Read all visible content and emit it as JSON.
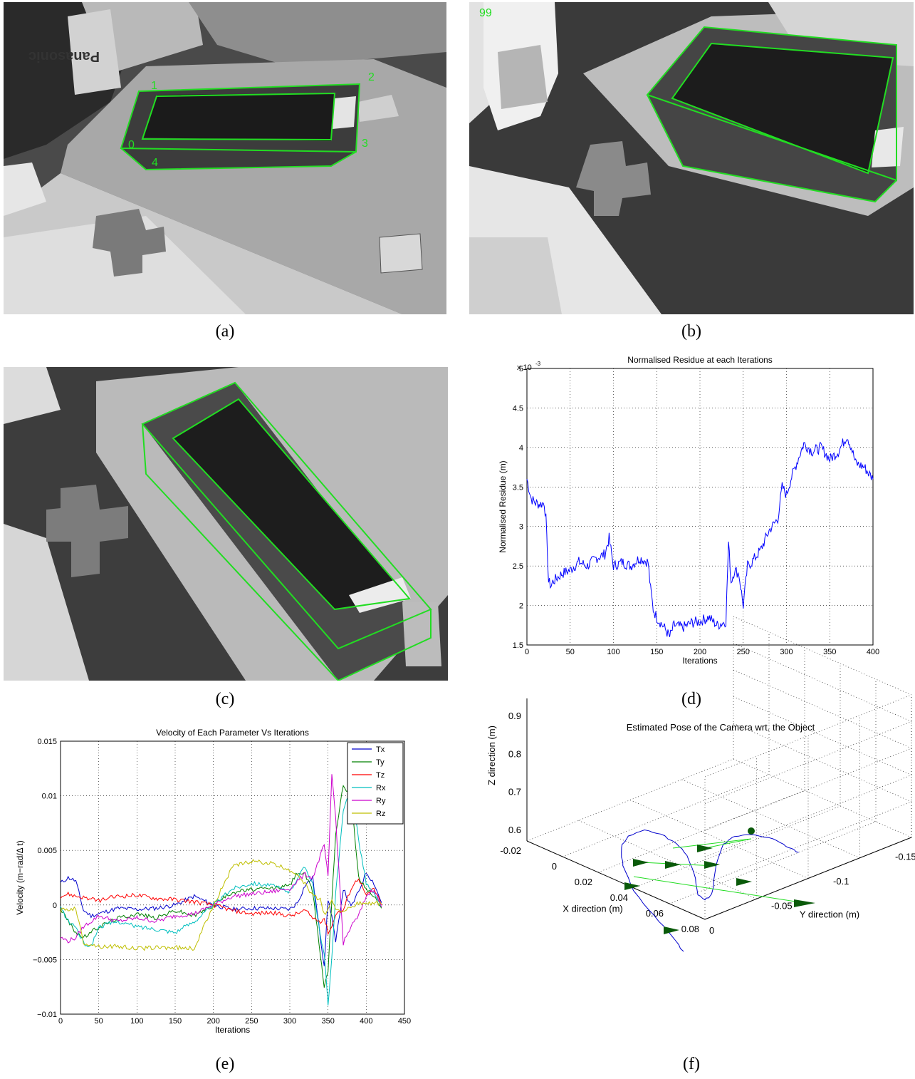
{
  "captions": {
    "a": "(a)",
    "b": "(b)",
    "c": "(c)",
    "d": "(d)",
    "e": "(e)",
    "f": "(f)"
  },
  "photos": {
    "a": {
      "corner_labels": [
        "1",
        "2",
        "3",
        "0",
        "4"
      ],
      "box_text": "Panasonic"
    },
    "b": {
      "frame_number": "99"
    },
    "c": {}
  },
  "colors": {
    "overlay": "#22dd22",
    "pose_marker": "#0a5a0a",
    "photo_gray": "#6f6f6f"
  },
  "chart_data": [
    {
      "id": "d",
      "type": "line",
      "title": "Normalised Residue at each Iterations",
      "xlabel": "Iterations",
      "ylabel": "Normalised Residue (m)",
      "y_multiplier": "x 10",
      "y_exponent": "-3",
      "xlim": [
        0,
        400
      ],
      "ylim": [
        1.5,
        5
      ],
      "xticks": [
        0,
        50,
        100,
        150,
        200,
        250,
        300,
        350,
        400
      ],
      "yticks": [
        1.5,
        2,
        2.5,
        3,
        3.5,
        4,
        4.5,
        5
      ],
      "grid": true,
      "series": [
        {
          "color": "#0000ff",
          "x": [
            0,
            5,
            10,
            15,
            20,
            22,
            25,
            28,
            30,
            35,
            40,
            50,
            60,
            70,
            80,
            90,
            95,
            100,
            110,
            120,
            130,
            140,
            143,
            146,
            150,
            160,
            165,
            170,
            180,
            190,
            200,
            210,
            220,
            230,
            233,
            236,
            240,
            245,
            250,
            255,
            260,
            270,
            280,
            290,
            295,
            300,
            305,
            310,
            315,
            320,
            330,
            340,
            350,
            360,
            370,
            375,
            380,
            390,
            400
          ],
          "y": [
            3.6,
            3.35,
            3.3,
            3.28,
            3.3,
            3.1,
            2.3,
            2.25,
            2.3,
            2.35,
            2.4,
            2.45,
            2.55,
            2.5,
            2.6,
            2.65,
            2.85,
            2.5,
            2.55,
            2.5,
            2.6,
            2.55,
            2.2,
            1.95,
            1.85,
            1.7,
            1.6,
            1.75,
            1.72,
            1.78,
            1.8,
            1.85,
            1.75,
            1.8,
            2.8,
            2.3,
            2.45,
            2.4,
            2.0,
            2.5,
            2.55,
            2.7,
            2.95,
            3.1,
            3.5,
            3.4,
            3.6,
            3.75,
            3.9,
            4.05,
            3.95,
            4.0,
            3.85,
            3.95,
            4.15,
            4.0,
            3.8,
            3.75,
            3.6
          ]
        }
      ]
    },
    {
      "id": "e",
      "type": "line",
      "title": "Velocity of Each Parameter Vs Iterations",
      "xlabel": "Iterations",
      "ylabel": "Velocity (m−rad/Δ t)",
      "xlim": [
        0,
        450
      ],
      "ylim": [
        -0.01,
        0.015
      ],
      "xticks": [
        0,
        50,
        100,
        150,
        200,
        250,
        300,
        350,
        400,
        450
      ],
      "yticks": [
        -0.01,
        -0.005,
        0,
        0.005,
        0.01,
        0.015
      ],
      "yticklabels": [
        "−0.01",
        "−0.005",
        "0",
        "0.005",
        "0.01",
        "0.015"
      ],
      "grid": true,
      "legend": "top-right",
      "x": [
        0,
        10,
        20,
        30,
        40,
        50,
        75,
        100,
        125,
        150,
        175,
        200,
        225,
        250,
        275,
        300,
        310,
        320,
        330,
        340,
        345,
        350,
        355,
        360,
        370,
        380,
        390,
        400,
        410,
        420
      ],
      "series": [
        {
          "name": "Tx",
          "color": "#0000cc",
          "values": [
            0.002,
            0.0025,
            0.0022,
            -0.0005,
            -0.001,
            -0.0008,
            -0.0003,
            -0.0004,
            -0.0003,
            0.0,
            0.0008,
            0.0,
            -0.0004,
            -0.0003,
            -0.0003,
            -0.0004,
            0.0002,
            0.0018,
            0.0025,
            -0.003,
            -0.0055,
            0.0005,
            -0.001,
            -0.0035,
            0.0015,
            -0.0002,
            0.0012,
            0.003,
            0.002,
            0.0002
          ]
        },
        {
          "name": "Ty",
          "color": "#008000",
          "values": [
            -0.0003,
            -0.0015,
            -0.0025,
            -0.003,
            -0.0025,
            -0.002,
            -0.0012,
            -0.0008,
            -0.0012,
            -0.0005,
            -0.001,
            0.0,
            0.0012,
            0.0014,
            0.0015,
            0.0018,
            0.003,
            0.0028,
            0.0012,
            -0.0045,
            -0.0075,
            -0.006,
            0.0005,
            0.0065,
            0.011,
            0.01,
            0.0025,
            0.0015,
            0.0008,
            -0.0003
          ]
        },
        {
          "name": "Tz",
          "color": "#ff0000",
          "values": [
            0.0008,
            0.001,
            0.0008,
            0.0007,
            0.0005,
            0.0004,
            0.0008,
            0.0009,
            0.0006,
            0.0005,
            0.0003,
            0.0,
            -0.0005,
            -0.0008,
            -0.0007,
            -0.001,
            -0.0008,
            -0.0005,
            -0.0012,
            -0.0015,
            -0.0012,
            -0.0025,
            -0.002,
            -0.0008,
            -0.0005,
            0.0015,
            0.0025,
            0.0008,
            0.0015,
            0.0
          ]
        },
        {
          "name": "Rx",
          "color": "#00bfbf",
          "values": [
            -0.0002,
            -0.0015,
            -0.002,
            -0.0035,
            -0.0038,
            -0.002,
            -0.0015,
            -0.002,
            -0.0022,
            -0.0025,
            -0.0015,
            0.0,
            0.0015,
            0.002,
            0.0018,
            0.0012,
            0.0025,
            0.0035,
            0.002,
            -0.003,
            -0.0045,
            -0.009,
            -0.005,
            0.001,
            0.0085,
            0.011,
            0.006,
            0.002,
            0.001,
            -0.0002
          ]
        },
        {
          "name": "Ry",
          "color": "#cc00cc",
          "values": [
            -0.003,
            -0.0033,
            -0.003,
            -0.002,
            -0.0015,
            -0.001,
            -0.0015,
            -0.0012,
            -0.0015,
            -0.001,
            -0.0008,
            0.0,
            0.0008,
            0.001,
            0.0012,
            0.0015,
            0.0022,
            0.0028,
            0.0025,
            0.0045,
            0.0055,
            0.0025,
            0.012,
            0.008,
            -0.0035,
            -0.002,
            -0.001,
            0.0008,
            0.0015,
            -0.0002
          ]
        },
        {
          "name": "Rz",
          "color": "#bfbf00",
          "values": [
            -0.0005,
            -0.0004,
            -0.0003,
            -0.0035,
            -0.0036,
            -0.0038,
            -0.0038,
            -0.004,
            -0.0039,
            -0.0039,
            -0.004,
            0.0,
            0.0035,
            0.004,
            0.0038,
            0.0032,
            0.0028,
            0.002,
            0.0008,
            0.0005,
            -0.0008,
            -0.0005,
            0.0003,
            -0.0003,
            -0.0005,
            -0.0003,
            0.0002,
            0.0001,
            0.0002,
            0.0001
          ]
        }
      ]
    },
    {
      "id": "f",
      "type": "scatter",
      "subtype": "3d-line",
      "title": "Estimated Pose of the Camera wrt. the Object",
      "xlabel": "X direction (m)",
      "ylabel": "Y direction (m)",
      "zlabel": "Z direction (m)",
      "xticks": [
        -0.02,
        0,
        0.02,
        0.04,
        0.06,
        0.08
      ],
      "xticklabels": [
        "-0.02",
        "0",
        "0.02",
        "0.04",
        "0.06",
        "0.08"
      ],
      "yticks": [
        0,
        -0.05,
        -0.1,
        -0.15
      ],
      "yticklabels": [
        "0",
        "-0.05",
        "-0.1",
        "-0.15"
      ],
      "zticks": [
        0.6,
        0.7,
        0.8,
        0.9
      ],
      "zticklabels": [
        "0.6",
        "0.7",
        "0.8",
        "0.9"
      ],
      "grid": true,
      "trajectory_points": [
        [
          0.0,
          -0.08,
          0.59
        ],
        [
          0.01,
          -0.07,
          0.62
        ],
        [
          0.02,
          -0.06,
          0.66
        ],
        [
          0.03,
          -0.05,
          0.7
        ],
        [
          0.04,
          -0.04,
          0.74
        ],
        [
          0.05,
          -0.03,
          0.77
        ],
        [
          0.055,
          -0.02,
          0.78
        ],
        [
          0.05,
          -0.03,
          0.78
        ],
        [
          0.045,
          -0.05,
          0.8
        ],
        [
          0.04,
          -0.07,
          0.82
        ],
        [
          0.035,
          -0.09,
          0.84
        ],
        [
          0.03,
          -0.11,
          0.85
        ]
      ],
      "pose_markers": 8
    }
  ]
}
